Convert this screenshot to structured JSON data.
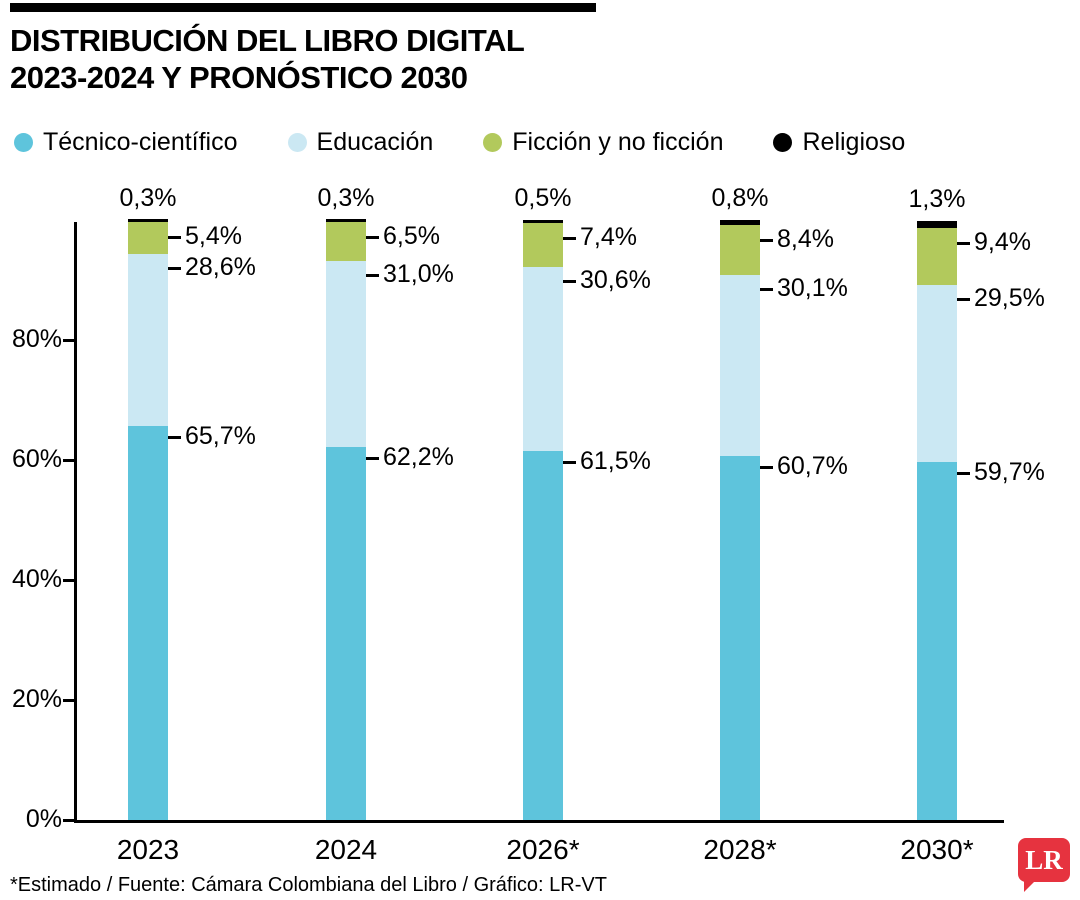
{
  "header": {
    "title_line1": "DISTRIBUCIÓN DEL LIBRO DIGITAL",
    "title_line2": "2023-2024 Y PRONÓSTICO 2030"
  },
  "legend": [
    {
      "label": "Técnico-científico",
      "color": "#5ec4dc"
    },
    {
      "label": "Educación",
      "color": "#cbe8f3"
    },
    {
      "label": "Ficción y no ficción",
      "color": "#b2c95c"
    },
    {
      "label": "Religioso",
      "color": "#000000"
    }
  ],
  "chart_data": {
    "type": "bar",
    "stacked": true,
    "title": "Distribución del libro digital 2023-2024 y pronóstico 2030",
    "categories": [
      "2023",
      "2024",
      "2026*",
      "2028*",
      "2030*"
    ],
    "series": [
      {
        "name": "Técnico-científico",
        "color": "#5ec4dc",
        "values": [
          65.7,
          62.2,
          61.5,
          60.7,
          59.7
        ],
        "labels": [
          "65,7%",
          "62,2%",
          "61,5%",
          "60,7%",
          "59,7%"
        ]
      },
      {
        "name": "Educación",
        "color": "#cbe8f3",
        "values": [
          28.6,
          31.0,
          30.6,
          30.1,
          29.5
        ],
        "labels": [
          "28,6%",
          "31,0%",
          "30,6%",
          "30,1%",
          "29,5%"
        ]
      },
      {
        "name": "Ficción y no ficción",
        "color": "#b2c95c",
        "values": [
          5.4,
          6.5,
          7.4,
          8.4,
          9.4
        ],
        "labels": [
          "5,4%",
          "6,5%",
          "7,4%",
          "8,4%",
          "9,4%"
        ]
      },
      {
        "name": "Religioso",
        "color": "#000000",
        "values": [
          0.3,
          0.3,
          0.5,
          0.8,
          1.3
        ],
        "labels": [
          "0,3%",
          "0,3%",
          "0,5%",
          "0,8%",
          "1,3%"
        ]
      }
    ],
    "y_ticks": [
      "0%",
      "20%",
      "40%",
      "60%",
      "80%"
    ],
    "y_tick_values": [
      0,
      20,
      40,
      60,
      80
    ],
    "ylim": [
      0,
      100
    ],
    "grid": false,
    "legend_position": "top"
  },
  "footer": {
    "note": "*Estimado / Fuente: Cámara Colombiana del Libro / Gráfico: LR-VT",
    "logo": "LR",
    "logo_color": "#e6333f"
  }
}
